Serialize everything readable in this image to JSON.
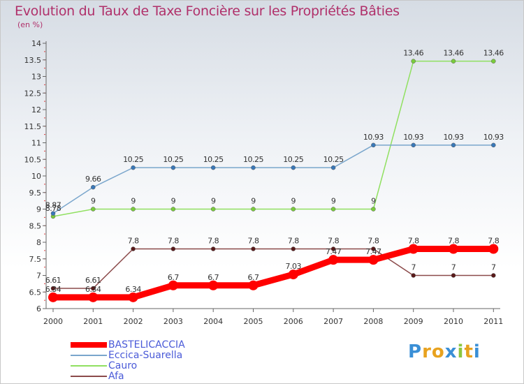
{
  "title": "Evolution du Taux de Taxe Foncière sur les Propriétés Bâties",
  "unit_label": "(en %)",
  "logo": {
    "letters": [
      "P",
      "r",
      "o",
      "x",
      "i",
      "t",
      "i"
    ],
    "colors": [
      "#3a8fd6",
      "#e8a21f",
      "#e8a21f",
      "#3a8fd6",
      "#8cc63f",
      "#e8a21f",
      "#3a8fd6"
    ]
  },
  "chart_data": {
    "type": "line",
    "title": "Evolution du Taux de Taxe Foncière sur les Propriétés Bâties",
    "ylabel": "(en %)",
    "xlabel": "",
    "categories": [
      "2000",
      "2001",
      "2002",
      "2003",
      "2004",
      "2005",
      "2006",
      "2007",
      "2008",
      "2009",
      "2010",
      "2011"
    ],
    "ylim": [
      6,
      14
    ],
    "yticks": [
      "6",
      "6.5",
      "7",
      "7.5",
      "8",
      "8.5",
      "9",
      "9.5",
      "10",
      "10.5",
      "11",
      "11.5",
      "12",
      "12.5",
      "13",
      "13.5",
      "14"
    ],
    "ytick_values": [
      6,
      6.5,
      7,
      7.5,
      8,
      8.5,
      9,
      9.5,
      10,
      10.5,
      11,
      11.5,
      12,
      12.5,
      13,
      13.5,
      14
    ],
    "series": [
      {
        "name": "Afa",
        "color": "#8b4a4a",
        "point_color": "#5a1a1a",
        "values": [
          6.61,
          6.61,
          7.8,
          7.8,
          7.8,
          7.8,
          7.8,
          7.8,
          7.8,
          7,
          7,
          7
        ],
        "labels": [
          "6.61",
          "6.61",
          "7.8",
          "7.8",
          "7.8",
          "7.8",
          "7.8",
          "7.8",
          "7.8",
          "7",
          "7",
          "7"
        ]
      },
      {
        "name": "Cauro",
        "color": "#90e060",
        "point_color": "#7acc3c",
        "values": [
          8.78,
          9,
          9,
          9,
          9,
          9,
          9,
          9,
          9,
          13.46,
          13.46,
          13.46
        ],
        "labels": [
          "8.78",
          "9",
          "9",
          "9",
          "9",
          "9",
          "9",
          "9",
          "9",
          "13.46",
          "13.46",
          "13.46"
        ]
      },
      {
        "name": "Eccica-Suarella",
        "color": "#7aa6cc",
        "point_color": "#3a78b8",
        "values": [
          8.87,
          9.66,
          10.25,
          10.25,
          10.25,
          10.25,
          10.25,
          10.25,
          10.93,
          10.93,
          10.93,
          10.93
        ],
        "labels": [
          "8.87",
          "9.66",
          "10.25",
          "10.25",
          "10.25",
          "10.25",
          "10.25",
          "10.25",
          "10.93",
          "10.93",
          "10.93",
          "10.93"
        ]
      },
      {
        "name": "BASTELICACCIA",
        "color": "#ff0000",
        "point_color": "#ff0000",
        "values": [
          6.34,
          6.34,
          6.34,
          6.7,
          6.7,
          6.7,
          7.03,
          7.47,
          7.47,
          7.8,
          7.8,
          7.8
        ],
        "labels": [
          "6.34",
          "6.34",
          "6.34",
          "6.7",
          "6.7",
          "6.7",
          "7.03",
          "7.47",
          "7.47",
          "7.8",
          "7.8",
          "7.8"
        ]
      }
    ],
    "legend": [
      {
        "name": "BASTELICACCIA",
        "color": "#ff0000",
        "label_color": "#4a5ad8"
      },
      {
        "name": "Eccica-Suarella",
        "color": "#7aa6cc",
        "label_color": "#4a5ad8"
      },
      {
        "name": "Cauro",
        "color": "#90e060",
        "label_color": "#4a5ad8"
      },
      {
        "name": "Afa",
        "color": "#8b4a4a",
        "label_color": "#4a5ad8"
      }
    ]
  }
}
